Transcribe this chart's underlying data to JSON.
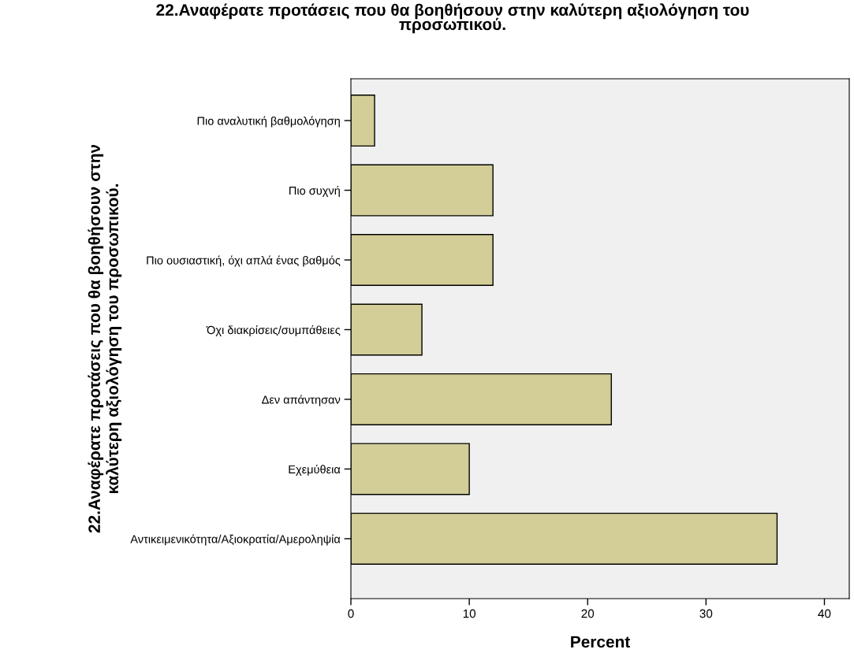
{
  "chart_data": {
    "type": "bar",
    "orientation": "horizontal",
    "title": "22.Αναφέρατε προτάσεις που θα βοηθήσουν στην καλύτερη αξιολόγηση του\nπροσωπικού.",
    "xlabel": "Percent",
    "ylabel": "22.Αναφέρατε προτάσεις που θα βοηθήσουν στην\nκαλύτερη αξιολόγηση του προσωπικού.",
    "categories": [
      "Πιο αναλυτική βαθμολόγηση",
      "Πιο συχνή",
      "Πιο ουσιαστική, όχι απλά ένας βαθμός",
      "Όχι διακρίσεις/συμπάθειες",
      "Δεν απάντησαν",
      "Εχεμύθεια",
      "Αντικειμενικότητα/Αξιοκρατία/Αμεροληψία"
    ],
    "values": [
      2,
      12,
      12,
      6,
      22,
      10,
      36
    ],
    "color": "#d3ce97",
    "xlim": [
      0,
      42.1
    ],
    "xticks": [
      0,
      10,
      20,
      30,
      40
    ],
    "grid": false
  }
}
